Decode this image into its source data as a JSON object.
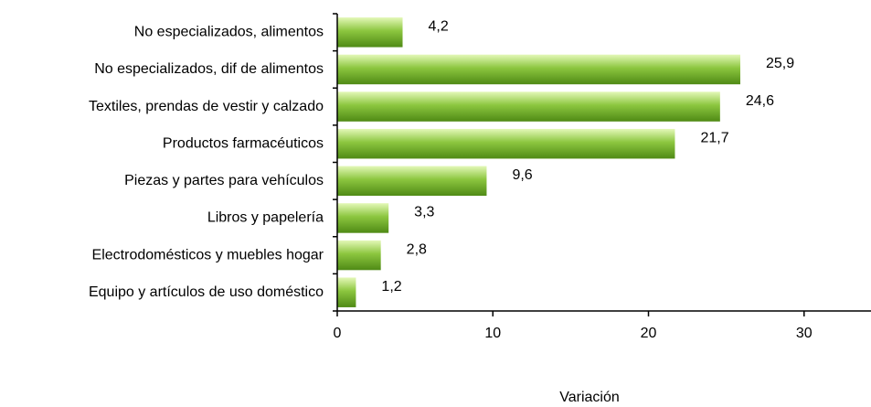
{
  "chart_data": {
    "type": "bar",
    "orientation": "horizontal",
    "x_label": "Variación",
    "categories": [
      "No especializados, alimentos",
      "No especializados, dif de alimentos",
      "Textiles, prendas de vestir y calzado",
      "Productos farmacéuticos",
      "Piezas y partes para vehículos",
      "Libros y papelería",
      "Electrodomésticos y muebles hogar",
      "Equipo y artículos de uso doméstico"
    ],
    "values": [
      4.2,
      25.9,
      24.6,
      21.7,
      9.6,
      3.3,
      2.8,
      1.2
    ],
    "value_labels": [
      "4,2",
      "25,9",
      "24,6",
      "21,7",
      "9,6",
      "3,3",
      "2,8",
      "1,2"
    ],
    "color": "#8cc63f",
    "xlim": [
      0,
      34.3
    ],
    "xticks": [
      0,
      10,
      20,
      30
    ]
  }
}
